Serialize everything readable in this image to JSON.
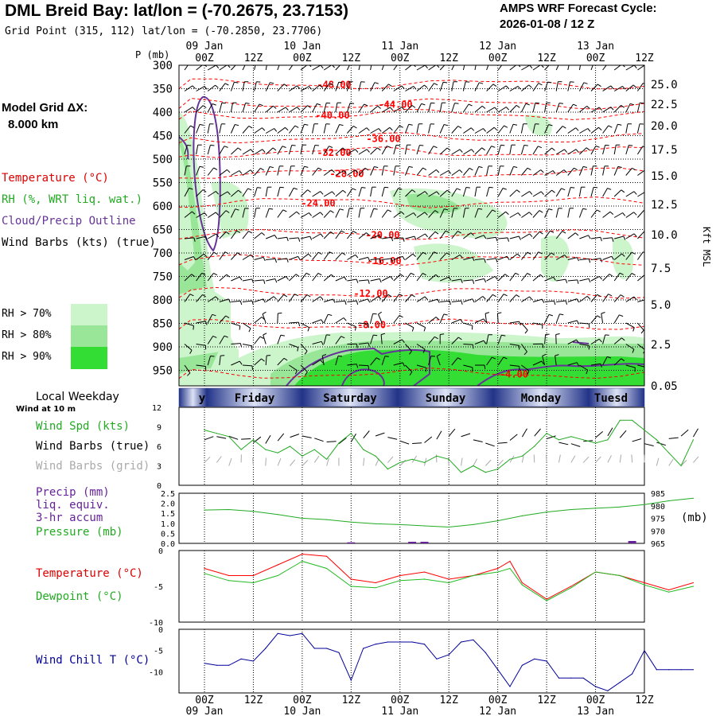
{
  "header": {
    "title": "DML Breid Bay:  lat/lon = (-70.2675, 23.7153)",
    "subtitle": "Grid Point (315, 112) lat/lon = (-70.2850, 23.7706)",
    "cycle_line1": "AMPS WRF Forecast Cycle:",
    "cycle_line2": "2026-01-08 / 12  Z"
  },
  "model_grid": {
    "label": "Model Grid ΔX:",
    "value": "8.000 km"
  },
  "legend": {
    "temperature": "Temperature (°C)",
    "rh": "RH (%, WRT liq. wat.)",
    "cloud": "Cloud/Precip Outline",
    "wind": "Wind Barbs (kts) (true)",
    "rh70": "RH > 70%",
    "rh80": "RH > 80%",
    "rh90": "RH > 90%"
  },
  "colors": {
    "temperature": "#ff0000",
    "rh70": "#ccf5cc",
    "rh80": "#99e699",
    "rh90": "#33dd33",
    "cloud": "#663399",
    "wind_spd": "#22aa22",
    "wind_grid": "#aaaaaa",
    "pressure": "#22aa22",
    "precip": "#662299",
    "dewpoint": "#22bb22",
    "windchill": "#000099"
  },
  "time_axis": {
    "top_dates": [
      "09 Jan",
      "10 Jan",
      "11 Jan",
      "12 Jan",
      "13 Jan"
    ],
    "hours": [
      "00Z",
      "12Z",
      "00Z",
      "12Z",
      "00Z",
      "12Z",
      "00Z",
      "12Z",
      "00Z",
      "12Z"
    ],
    "bottom_dates": [
      "09 Jan",
      "10 Jan",
      "11 Jan",
      "12 Jan",
      "13 Jan"
    ],
    "p_label": "P (mb)",
    "kft_label": "Kft MSL"
  },
  "weekday_band": {
    "label": "Local Weekday",
    "sub_label": "Wind at 10 m",
    "days": [
      "y",
      "Friday",
      "Saturday",
      "Sunday",
      "Monday",
      "Tuesd"
    ]
  },
  "panel_wind": {
    "labels": [
      "Wind Spd (kts)",
      "Wind Barbs (true)",
      "Wind Barbs (grid)"
    ]
  },
  "panel_precip": {
    "labels": [
      "Precip (mm)",
      "liq. equiv.",
      "3-hr accum",
      "Pressure (mb)"
    ],
    "unit": "(mb)"
  },
  "panel_temp": {
    "labels": [
      "Temperature (°C)",
      "Dewpoint (°C)"
    ]
  },
  "panel_chill": {
    "labels": [
      "Wind Chill T (°C)"
    ]
  },
  "chart_data": [
    {
      "type": "heatmap",
      "panel": "time-height cross section",
      "x_hours": [
        0,
        120
      ],
      "p_ticks": [
        300,
        350,
        400,
        450,
        500,
        550,
        600,
        650,
        700,
        750,
        800,
        850,
        900,
        950
      ],
      "kft_ticks": [
        "25.0",
        "22.5",
        "20.0",
        "17.5",
        "15.0",
        "12.5",
        "10.0",
        "7.5",
        "5.0",
        "2.5",
        "0.05"
      ],
      "isotherms": [
        {
          "label": "-48.00",
          "p": 340
        },
        {
          "label": "-44.00",
          "p": 382
        },
        {
          "label": "-40.00",
          "p": 405
        },
        {
          "label": "-36.00",
          "p": 455
        },
        {
          "label": "-32.00",
          "p": 485
        },
        {
          "label": "-28.00",
          "p": 530
        },
        {
          "label": "-24.00",
          "p": 592
        },
        {
          "label": "-20.00",
          "p": 660
        },
        {
          "label": "-16.00",
          "p": 715
        },
        {
          "label": "-12.00",
          "p": 785
        },
        {
          "label": "-8.00",
          "p": 852
        },
        {
          "label": "-4.00",
          "p": 957
        }
      ]
    },
    {
      "type": "line",
      "panel": "wind",
      "ylim": [
        0,
        12
      ],
      "yticks": [
        "0",
        "3",
        "6",
        "9",
        "12"
      ],
      "x_hours": [
        0,
        3,
        6,
        9,
        12,
        15,
        18,
        21,
        24,
        27,
        30,
        33,
        36,
        39,
        42,
        45,
        48,
        51,
        54,
        57,
        60,
        63,
        66,
        69,
        72,
        75,
        78,
        81,
        84,
        87,
        90,
        93,
        96,
        99,
        102,
        105,
        108,
        111,
        114,
        117,
        120
      ],
      "series": [
        {
          "name": "Wind Spd (kts)",
          "values": [
            8.5,
            8.0,
            7.5,
            5.5,
            7.0,
            5.5,
            5.0,
            6.0,
            4.5,
            5.5,
            4.0,
            6.5,
            8.0,
            5.5,
            4.5,
            2.5,
            3.5,
            4.0,
            3.5,
            4.5,
            4.0,
            2.0,
            3.0,
            2.0,
            2.5,
            4.0,
            4.5,
            6.0,
            8.0,
            7.0,
            7.5,
            7.0,
            6.5,
            7.0,
            10.0,
            10.0,
            8.5,
            7.0,
            5.0,
            3.0,
            7.0
          ]
        },
        {
          "name": "Wind Barbs (grid)",
          "values": [
            3.5,
            3.5,
            3.0,
            3.5,
            3.0,
            3.0,
            3.0,
            3.0,
            3.0,
            3.5,
            3.0,
            3.0,
            3.5,
            3.0,
            3.0,
            3.5,
            3.0,
            3.5,
            3.0,
            3.5,
            3.0,
            3.0,
            3.0,
            3.0,
            3.0,
            3.5,
            3.5,
            3.5,
            3.5,
            3.5,
            3.5,
            3.5,
            3.5,
            3.5,
            3.5,
            3.5,
            3.5,
            3.0,
            3.0,
            3.0,
            3.5
          ]
        }
      ]
    },
    {
      "type": "line",
      "panel": "precip-pressure",
      "ylim": [
        0,
        2.5
      ],
      "yticks_left": [
        "0.0",
        "0.5",
        "1.0",
        "1.5",
        "2.0",
        "2.5"
      ],
      "yticks_right": [
        "965",
        "970",
        "975",
        "980",
        "985"
      ],
      "x_hours": [
        0,
        6,
        12,
        18,
        24,
        30,
        36,
        42,
        48,
        54,
        60,
        66,
        72,
        78,
        84,
        90,
        96,
        102,
        108,
        114,
        120
      ],
      "series": [
        {
          "name": "Pressure (mb)",
          "values": [
            978.3,
            978.5,
            977.8,
            976.5,
            975.0,
            974.5,
            973.5,
            972.8,
            972.5,
            972.0,
            971.5,
            972.5,
            974.0,
            976.0,
            977.5,
            978.5,
            979.0,
            979.5,
            980.5,
            982.0,
            983.0
          ]
        },
        {
          "name": "Precip (mm)",
          "x_hours": [
            36,
            51,
            54,
            105
          ],
          "values": [
            0.05,
            0.08,
            0.08,
            0.12
          ]
        }
      ]
    },
    {
      "type": "line",
      "panel": "temperature-dewpoint",
      "ylim": [
        -10,
        0
      ],
      "yticks": [
        "-10",
        "-5",
        "0"
      ],
      "x_hours": [
        0,
        6,
        12,
        18,
        24,
        30,
        36,
        42,
        48,
        54,
        60,
        66,
        72,
        75,
        78,
        84,
        90,
        96,
        102,
        108,
        114,
        120
      ],
      "series": [
        {
          "name": "Temperature (°C)",
          "values": [
            -2.5,
            -3.5,
            -3.5,
            -2.0,
            -0.5,
            -0.8,
            -4.0,
            -4.5,
            -3.5,
            -3.0,
            -4.0,
            -3.5,
            -2.5,
            -1.5,
            -4.5,
            -6.8,
            -5.0,
            -3.0,
            -3.5,
            -4.5,
            -5.5,
            -4.5
          ]
        },
        {
          "name": "Dewpoint (°C)",
          "values": [
            -3.2,
            -4.2,
            -4.5,
            -3.5,
            -1.5,
            -2.5,
            -5.0,
            -5.2,
            -4.2,
            -4.0,
            -4.5,
            -3.5,
            -3.0,
            -2.5,
            -4.8,
            -7.0,
            -5.2,
            -3.0,
            -3.5,
            -4.8,
            -5.8,
            -5.0
          ]
        }
      ]
    },
    {
      "type": "line",
      "panel": "wind-chill",
      "ylim": [
        -15,
        0
      ],
      "yticks": [
        "0",
        "-5",
        "-10"
      ],
      "x_hours": [
        0,
        3,
        6,
        9,
        12,
        15,
        18,
        21,
        24,
        27,
        30,
        33,
        36,
        39,
        42,
        45,
        48,
        51,
        54,
        57,
        60,
        63,
        66,
        69,
        72,
        75,
        78,
        81,
        84,
        87,
        90,
        93,
        96,
        99,
        102,
        105,
        108,
        111,
        114,
        117,
        120
      ],
      "series": [
        {
          "name": "Wind Chill T (°C)",
          "values": [
            -8.0,
            -8.5,
            -8.5,
            -7.0,
            -7.5,
            -4.5,
            -1.0,
            -1.5,
            -1.0,
            -4.5,
            -4.5,
            -5.5,
            -12.0,
            -4.5,
            -3.5,
            -3.0,
            -3.0,
            -3.0,
            -3.5,
            -7.0,
            -6.0,
            -3.0,
            -2.5,
            -5.5,
            -9.5,
            -13.5,
            -8.5,
            -7.0,
            -7.5,
            -11.5,
            -11.5,
            -11.5,
            -13.5,
            -14.5,
            -12.5,
            -10.5,
            -5.0,
            -9.5,
            -9.5,
            -9.5,
            -9.5
          ]
        }
      ]
    }
  ]
}
